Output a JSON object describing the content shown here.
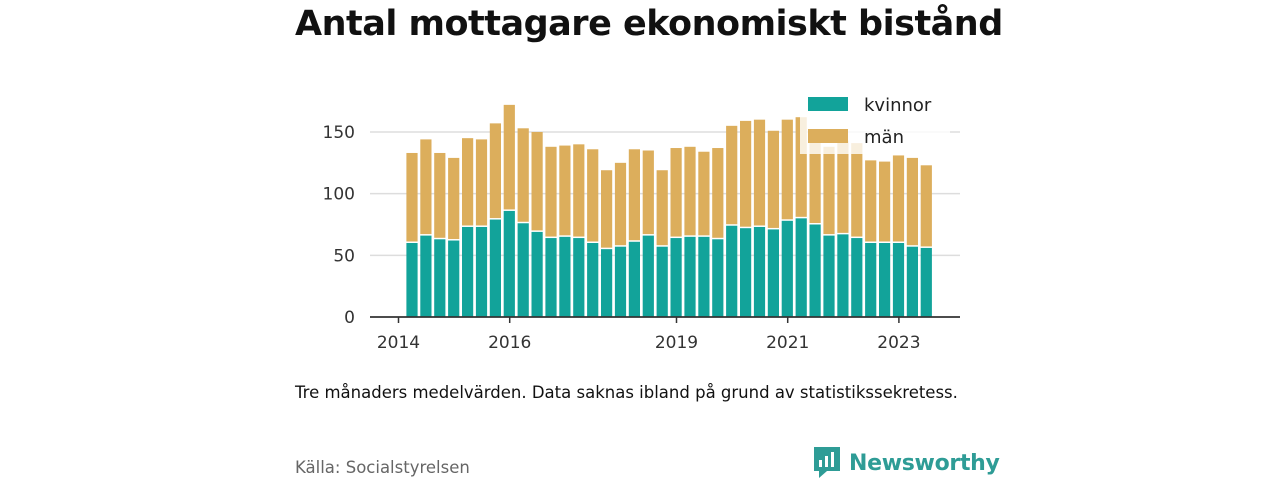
{
  "title": "Antal mottagare ekonomiskt bistånd",
  "note": "Tre månaders medelvärden. Data saknas ibland på grund av statistikssekretess.",
  "source": "Källa: Socialstyrelsen",
  "brand": {
    "name": "Newsworthy",
    "logo_icon": "newsworthy-bar-chart-logo-icon"
  },
  "colors": {
    "kvinnor": "#12a39a",
    "man": "#dcae5c",
    "grid": "#dddddd",
    "axis": "#333333"
  },
  "chart_data": {
    "type": "bar",
    "stacked": true,
    "title": "Antal mottagare ekonomiskt bistånd",
    "xlabel": "",
    "ylabel": "",
    "ylim": [
      0,
      175
    ],
    "yticks": [
      0,
      50,
      100,
      150
    ],
    "xticks": [
      "2014",
      "2016",
      "2019",
      "2021",
      "2023"
    ],
    "grid": true,
    "legend_position": "top-right",
    "series": [
      {
        "name": "kvinnor",
        "values": [
          60,
          66,
          63,
          62,
          73,
          73,
          79,
          86,
          76,
          69,
          64,
          65,
          64,
          60,
          55,
          57,
          61,
          66,
          57,
          64,
          65,
          65,
          63,
          74,
          72,
          73,
          71,
          78,
          80,
          75,
          66,
          67,
          64,
          60,
          60,
          60,
          57,
          56
        ]
      },
      {
        "name": "män",
        "values": [
          73,
          78,
          70,
          67,
          72,
          71,
          78,
          86,
          77,
          81,
          74,
          74,
          76,
          76,
          64,
          68,
          75,
          69,
          62,
          73,
          73,
          69,
          74,
          81,
          87,
          87,
          80,
          82,
          82,
          75,
          72,
          76,
          77,
          67,
          66,
          71,
          72,
          67
        ]
      }
    ],
    "x": [
      "2014-04",
      "2014-07",
      "2014-10",
      "2015-01",
      "2015-04",
      "2015-07",
      "2015-10",
      "2016-01",
      "2016-04",
      "2016-07",
      "2016-10",
      "2017-01",
      "2017-04",
      "2017-07",
      "2017-10",
      "2018-01",
      "2018-04",
      "2018-07",
      "2018-10",
      "2019-01",
      "2019-04",
      "2019-07",
      "2019-10",
      "2020-01",
      "2020-04",
      "2020-07",
      "2020-10",
      "2021-01",
      "2021-04",
      "2021-07",
      "2021-10",
      "2022-01",
      "2022-04",
      "2022-07",
      "2022-10",
      "2023-01",
      "2023-04",
      "2023-07"
    ]
  }
}
